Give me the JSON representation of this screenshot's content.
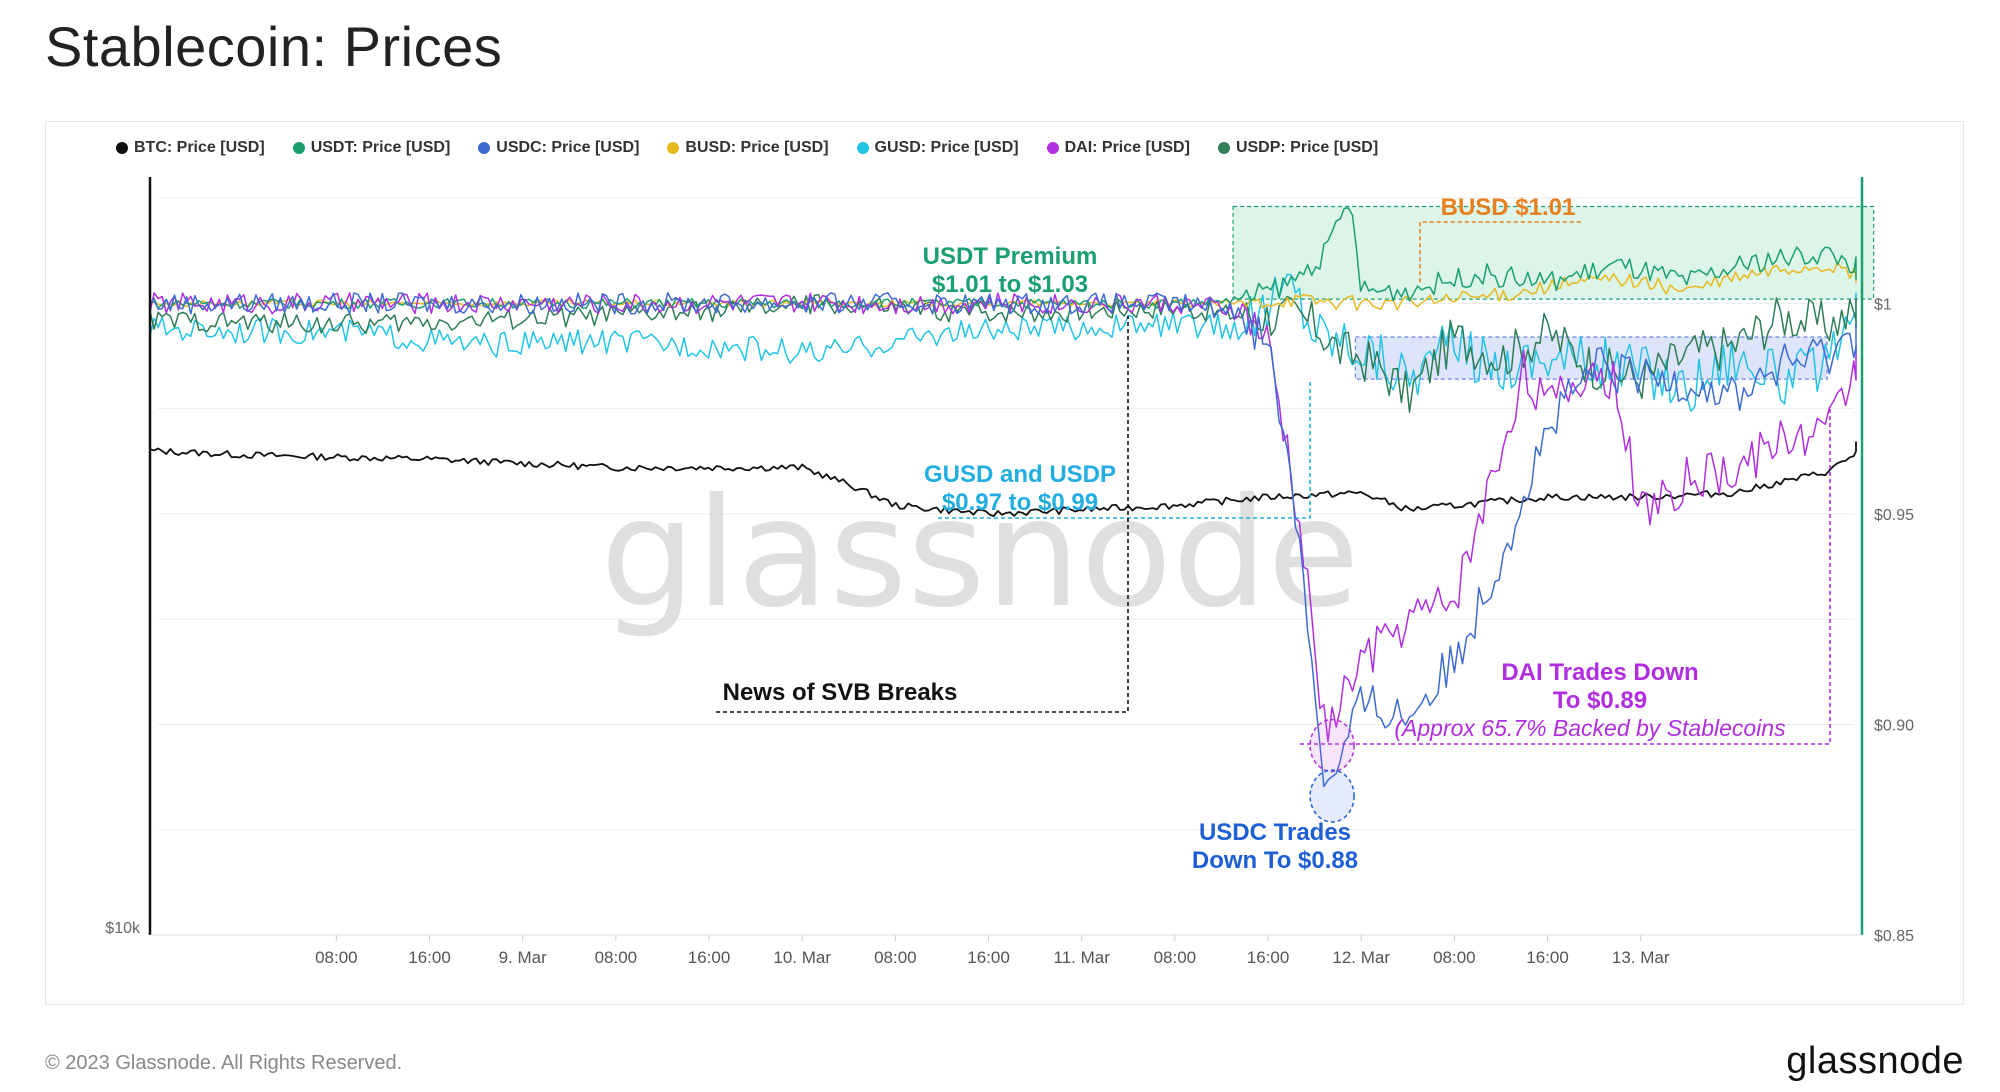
{
  "page": {
    "title": "Stablecoin: Prices",
    "footer": "© 2023 Glassnode. All Rights Reserved.",
    "brand": "glassnode",
    "watermark": "glassnode"
  },
  "chart_data": {
    "type": "line",
    "title": "Stablecoin: Prices",
    "legend_position": "top-left",
    "grid": true,
    "x_ticks": [
      "08:00",
      "16:00",
      "9. Mar",
      "08:00",
      "16:00",
      "10. Mar",
      "08:00",
      "16:00",
      "11. Mar",
      "08:00",
      "16:00",
      "12. Mar",
      "08:00",
      "16:00",
      "13. Mar"
    ],
    "x_range_hours": [
      -8,
      139
    ],
    "left_axis": {
      "tick_labels": [
        "$10k"
      ],
      "ylim_label": "$10k"
    },
    "right_axis": {
      "tick_labels": [
        "$1",
        "$0.95",
        "$0.90",
        "$0.85"
      ],
      "ylim": [
        0.85,
        1.03
      ]
    },
    "series": [
      {
        "name": "BTC: Price [USD]",
        "color": "#111111",
        "axis": "left",
        "x": [
          -8,
          0,
          16,
          32,
          48,
          52,
          56,
          64,
          72,
          80,
          88,
          96,
          100,
          104,
          108,
          112,
          116,
          120,
          128,
          136,
          140
        ],
        "y": [
          0.965,
          0.964,
          0.963,
          0.961,
          0.961,
          0.957,
          0.952,
          0.95,
          0.951,
          0.952,
          0.954,
          0.955,
          0.951,
          0.952,
          0.953,
          0.954,
          0.954,
          0.954,
          0.955,
          0.96,
          0.967
        ]
      },
      {
        "name": "USDT: Price [USD]",
        "color": "#1aa06e",
        "axis": "right",
        "x": [
          -8,
          20,
          40,
          60,
          80,
          86,
          90,
          93,
          95,
          96,
          100,
          106,
          112,
          118,
          124,
          130,
          136,
          140
        ],
        "y": [
          1.0,
          1.0,
          1.0,
          1.0,
          1.0,
          1.001,
          1.005,
          1.012,
          1.025,
          1.003,
          1.003,
          1.007,
          1.005,
          1.009,
          1.005,
          1.01,
          1.012,
          1.007
        ]
      },
      {
        "name": "USDC: Price [USD]",
        "color": "#3d6bd1",
        "axis": "right",
        "x": [
          -8,
          40,
          80,
          86,
          88,
          90,
          92,
          93,
          94,
          96,
          100,
          104,
          108,
          112,
          116,
          120,
          124,
          128,
          132,
          136,
          140
        ],
        "y": [
          1.0,
          1.0,
          1.0,
          0.998,
          0.99,
          0.96,
          0.91,
          0.883,
          0.89,
          0.905,
          0.902,
          0.915,
          0.94,
          0.97,
          0.985,
          0.982,
          0.982,
          0.978,
          0.985,
          0.988,
          0.995
        ]
      },
      {
        "name": "BUSD: Price [USD]",
        "color": "#e8b91e",
        "axis": "right",
        "x": [
          -8,
          40,
          80,
          86,
          90,
          96,
          100,
          108,
          112,
          118,
          124,
          128,
          132,
          136,
          140
        ],
        "y": [
          1.0,
          1.0,
          1.0,
          1.0,
          1.001,
          1.0,
          1.0,
          1.002,
          1.004,
          1.006,
          1.003,
          1.006,
          1.008,
          1.009,
          1.005
        ]
      },
      {
        "name": "GUSD: Price [USD]",
        "color": "#22c4e6",
        "axis": "right",
        "x": [
          -8,
          10,
          20,
          30,
          40,
          50,
          60,
          70,
          80,
          86,
          90,
          92,
          96,
          100,
          104,
          108,
          112,
          116,
          120,
          124,
          128,
          132,
          136,
          140
        ],
        "y": [
          0.994,
          0.993,
          0.99,
          0.991,
          0.99,
          0.988,
          0.993,
          0.994,
          0.995,
          0.994,
          1.005,
          0.994,
          0.99,
          0.983,
          0.99,
          0.985,
          0.988,
          0.986,
          0.985,
          0.98,
          0.988,
          0.982,
          0.985,
          0.999
        ]
      },
      {
        "name": "DAI: Price [USD]",
        "color": "#b02ee0",
        "axis": "right",
        "x": [
          -8,
          40,
          80,
          86,
          88,
          90,
          92,
          93,
          94,
          96,
          100,
          104,
          108,
          110,
          112,
          116,
          118,
          120,
          124,
          128,
          132,
          136,
          140
        ],
        "y": [
          1.0,
          1.0,
          1.0,
          0.998,
          0.99,
          0.96,
          0.92,
          0.895,
          0.905,
          0.915,
          0.925,
          0.93,
          0.965,
          0.985,
          0.975,
          0.985,
          0.98,
          0.95,
          0.958,
          0.96,
          0.968,
          0.97,
          0.995
        ]
      },
      {
        "name": "USDP: Price [USD]",
        "color": "#2e7d56",
        "axis": "right",
        "x": [
          -8,
          10,
          20,
          30,
          40,
          50,
          60,
          70,
          80,
          86,
          90,
          92,
          94,
          96,
          98,
          100,
          104,
          108,
          112,
          116,
          120,
          124,
          128,
          132,
          136,
          140
        ],
        "y": [
          0.996,
          0.995,
          0.996,
          0.997,
          0.998,
          1.0,
          0.998,
          0.998,
          0.999,
          0.997,
          0.997,
          0.995,
          0.989,
          0.987,
          0.984,
          0.978,
          0.992,
          0.987,
          0.993,
          0.985,
          0.982,
          0.988,
          0.99,
          0.997,
          0.995,
          0.999
        ]
      }
    ],
    "annotations": [
      {
        "text": "USDT Premium",
        "text2": "$1.01 to $1.03",
        "color": "#1aa06e"
      },
      {
        "text": "BUSD $1.01",
        "color": "#e8801e"
      },
      {
        "text": "GUSD and USDP",
        "text2": "$0.97 to $0.99",
        "color": "#22aee0"
      },
      {
        "text": "News of SVB Breaks",
        "color": "#111111"
      },
      {
        "text": "DAI Trades Down",
        "text2": "To $0.89",
        "text3": "(Approx 65.7% Backed by Stablecoins",
        "color": "#b02ee0"
      },
      {
        "text": "USDC Trades",
        "text2": "Down To $0.88",
        "color": "#1f5fd6"
      }
    ]
  }
}
